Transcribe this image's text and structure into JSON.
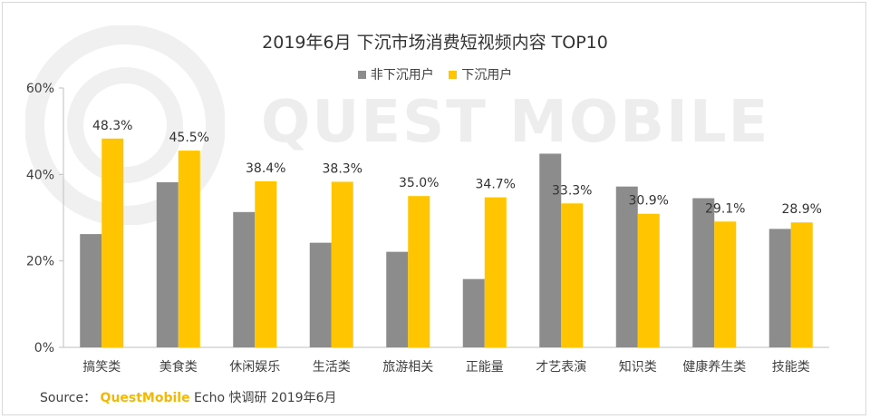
{
  "chart_data": {
    "type": "bar",
    "title": "2019年6月 下沉市场消费短视频内容 TOP10",
    "categories": [
      "搞笑类",
      "美食类",
      "休闲娱乐",
      "生活类",
      "旅游相关",
      "正能量",
      "才艺表演",
      "知识类",
      "健康养生类",
      "技能类"
    ],
    "series": [
      {
        "name": "非下沉用户",
        "color": "#8c8c8c",
        "values": [
          26.2,
          38.2,
          31.3,
          24.2,
          22.1,
          15.8,
          44.8,
          37.2,
          34.5,
          27.4
        ],
        "labels": []
      },
      {
        "name": "下沉用户",
        "color": "#ffc600",
        "values": [
          48.3,
          45.5,
          38.4,
          38.3,
          35.0,
          34.7,
          33.3,
          30.9,
          29.1,
          28.9
        ],
        "labels": [
          "48.3%",
          "45.5%",
          "38.4%",
          "38.3%",
          "35.0%",
          "34.7%",
          "33.3%",
          "30.9%",
          "29.1%",
          "28.9%"
        ]
      }
    ],
    "ylim": [
      0,
      60
    ],
    "yticks": [
      0,
      20,
      40,
      60
    ],
    "ytick_labels": [
      "0%",
      "20%",
      "40%",
      "60%"
    ],
    "grid": false,
    "legend": "top-center"
  },
  "watermark": {
    "text": "QUEST MOBILE"
  },
  "source": {
    "prefix": "Source：",
    "brand": "QuestMobile",
    "rest": " Echo 快调研 2019年6月"
  }
}
